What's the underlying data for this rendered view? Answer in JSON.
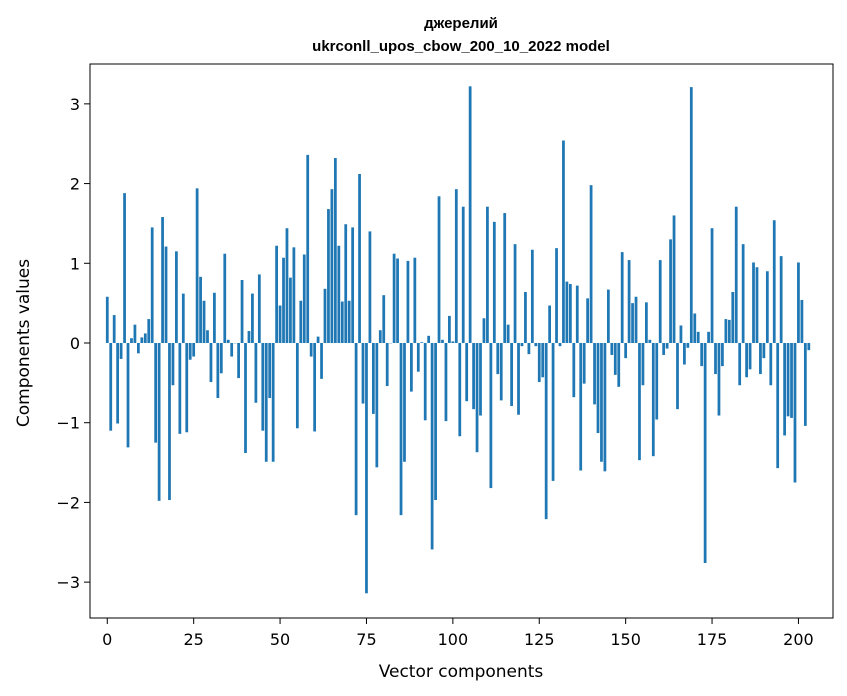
{
  "chart_data": {
    "type": "bar",
    "title_line1": "джерелий",
    "title_line2": "ukrconll_upos_cbow_200_10_2022 model",
    "xlabel": "Vector components",
    "ylabel": "Components values",
    "xlim": [
      -5,
      210
    ],
    "ylim": [
      -3.45,
      3.5
    ],
    "xticks": [
      0,
      25,
      50,
      75,
      100,
      125,
      150,
      175,
      200
    ],
    "yticks": [
      -3,
      -2,
      -1,
      0,
      1,
      2,
      3
    ],
    "ytick_labels": [
      "−3",
      "−2",
      "−1",
      "0",
      "1",
      "2",
      "3"
    ],
    "bar_color": "#1f77b4",
    "grid": false,
    "values": [
      0.58,
      -1.1,
      0.35,
      -1.01,
      -0.2,
      1.88,
      -1.31,
      0.06,
      0.23,
      -0.13,
      0.07,
      0.12,
      0.3,
      1.45,
      -1.25,
      -1.98,
      1.58,
      1.21,
      -1.97,
      -0.53,
      1.15,
      -1.14,
      0.62,
      -1.12,
      -0.21,
      -0.17,
      1.94,
      0.83,
      0.53,
      0.16,
      -0.49,
      0.63,
      -0.69,
      -0.38,
      1.12,
      0.04,
      -0.17,
      0.0,
      -0.44,
      0.79,
      -1.38,
      0.15,
      0.62,
      -0.75,
      0.86,
      -1.1,
      -1.49,
      -0.69,
      -1.49,
      1.22,
      0.47,
      1.07,
      1.44,
      0.82,
      1.2,
      -1.07,
      0.53,
      1.11,
      2.36,
      -0.17,
      -1.11,
      0.08,
      -0.45,
      0.68,
      1.68,
      1.93,
      2.32,
      1.22,
      0.52,
      1.49,
      0.53,
      1.45,
      -2.16,
      2.12,
      -0.76,
      -3.14,
      1.4,
      -0.89,
      -1.56,
      0.16,
      0.6,
      -0.54,
      0.0,
      1.12,
      1.06,
      -2.16,
      -1.49,
      1.03,
      -0.61,
      1.07,
      -0.36,
      0.01,
      -0.97,
      0.09,
      -2.59,
      -1.97,
      1.84,
      0.04,
      -0.98,
      0.34,
      0.02,
      1.93,
      -1.17,
      1.71,
      -0.73,
      3.22,
      -0.83,
      -1.37,
      -0.91,
      0.31,
      1.71,
      -1.82,
      1.52,
      -0.39,
      -0.72,
      1.63,
      0.23,
      -0.79,
      1.24,
      -0.9,
      -0.04,
      0.64,
      -0.14,
      1.17,
      -0.04,
      -0.49,
      -0.43,
      -2.21,
      0.47,
      -1.73,
      1.19,
      -0.04,
      2.54,
      0.77,
      0.74,
      -0.68,
      0.72,
      -1.6,
      -0.51,
      0.56,
      1.98,
      -0.77,
      -1.13,
      -1.49,
      -1.61,
      0.67,
      -0.15,
      -0.4,
      -0.55,
      1.14,
      -0.19,
      1.04,
      0.5,
      0.58,
      -1.47,
      -0.53,
      0.51,
      0.04,
      -1.42,
      -0.96,
      1.04,
      -0.15,
      -0.07,
      1.3,
      1.6,
      -0.83,
      0.22,
      -0.27,
      -0.06,
      3.21,
      0.37,
      0.14,
      -0.29,
      -2.76,
      0.14,
      1.44,
      -0.39,
      -0.91,
      -0.29,
      0.3,
      0.29,
      0.64,
      1.71,
      -0.53,
      1.24,
      -0.43,
      -0.33,
      1.01,
      0.95,
      -0.39,
      -0.19,
      0.9,
      -0.53,
      1.54,
      -1.57,
      1.09,
      -1.16,
      -0.92,
      -0.94,
      -1.75,
      1.01,
      0.54,
      -1.04,
      -0.09
    ]
  }
}
